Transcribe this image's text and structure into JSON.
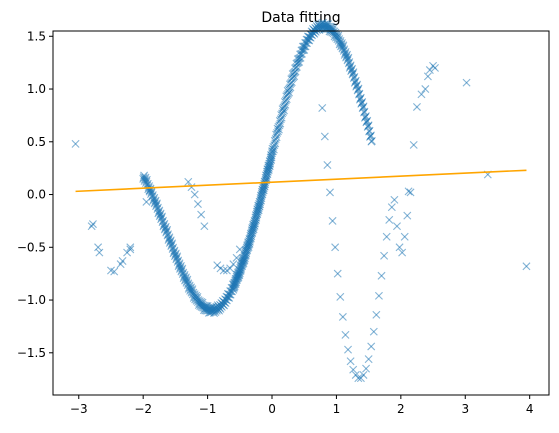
{
  "chart_data": {
    "type": "scatter",
    "title": "Data fitting",
    "xlabel": "",
    "ylabel": "",
    "xlim": [
      -3.4,
      4.3
    ],
    "ylim": [
      -1.9,
      1.55
    ],
    "x_ticks": [
      -3,
      -2,
      -1,
      0,
      1,
      2,
      3,
      4
    ],
    "y_ticks": [
      -1.5,
      -1.0,
      -0.5,
      0.0,
      0.5,
      1.0,
      1.5
    ],
    "x_tick_labels": [
      "−3",
      "−2",
      "−1",
      "0",
      "1",
      "2",
      "3",
      "4"
    ],
    "y_tick_labels": [
      "−1.5",
      "−1.0",
      "−0.5",
      "0.0",
      "0.5",
      "1.0",
      "1.5"
    ],
    "grid": false,
    "series": [
      {
        "kind": "scatter",
        "marker": "x",
        "color": "#1f77b4",
        "alpha": 0.55,
        "x": [
          -3.05,
          -2.8,
          -2.78,
          -2.7,
          -2.68,
          -2.5,
          -2.45,
          -2.35,
          -2.32,
          -2.25,
          -2.2,
          -2.2,
          -1.95,
          -1.9,
          -1.3,
          -1.25,
          -1.2,
          -1.15,
          -1.1,
          -1.05,
          -0.85,
          -0.8,
          -0.75,
          -0.7,
          -0.65,
          -0.6,
          -0.55,
          -0.5,
          0.78,
          0.82,
          0.86,
          0.9,
          0.94,
          0.98,
          1.02,
          1.06,
          1.1,
          1.14,
          1.18,
          1.22,
          1.26,
          1.3,
          1.34,
          1.38,
          1.42,
          1.46,
          1.5,
          1.54,
          1.58,
          1.62,
          1.66,
          1.7,
          1.74,
          1.78,
          1.82,
          1.86,
          1.9,
          1.94,
          1.98,
          2.02,
          2.06,
          2.1,
          2.12,
          2.15,
          2.2,
          2.25,
          2.32,
          2.38,
          2.42,
          2.45,
          2.5,
          2.53,
          3.02,
          3.35,
          3.95
        ],
        "y": [
          0.48,
          -0.3,
          -0.28,
          -0.5,
          -0.55,
          -0.72,
          -0.73,
          -0.66,
          -0.63,
          -0.55,
          -0.52,
          -0.5,
          -0.07,
          0.04,
          0.12,
          0.07,
          0.0,
          -0.09,
          -0.19,
          -0.3,
          -0.67,
          -0.7,
          -0.72,
          -0.72,
          -0.7,
          -0.66,
          -0.6,
          -0.52,
          0.82,
          0.55,
          0.28,
          0.02,
          -0.25,
          -0.5,
          -0.75,
          -0.97,
          -1.16,
          -1.33,
          -1.47,
          -1.58,
          -1.66,
          -1.71,
          -1.74,
          -1.74,
          -1.71,
          -1.65,
          -1.56,
          -1.44,
          -1.3,
          -1.14,
          -0.96,
          -0.77,
          -0.58,
          -0.4,
          -0.24,
          -0.12,
          -0.05,
          -0.3,
          -0.5,
          -0.55,
          -0.4,
          -0.2,
          0.03,
          0.02,
          0.47,
          0.83,
          0.95,
          1.0,
          1.12,
          1.18,
          1.22,
          1.2,
          1.06,
          0.19,
          -0.68
        ],
        "curve_segments": [
          [
            -2.0,
            0.0
          ],
          [
            -0.6,
            1.55
          ]
        ],
        "curve": "y = sin(2x) + 0.6*sin(x+0.7)"
      },
      {
        "kind": "line",
        "color": "#ffa500",
        "x": [
          -3.05,
          3.95
        ],
        "y": [
          0.03,
          0.23
        ]
      }
    ]
  }
}
